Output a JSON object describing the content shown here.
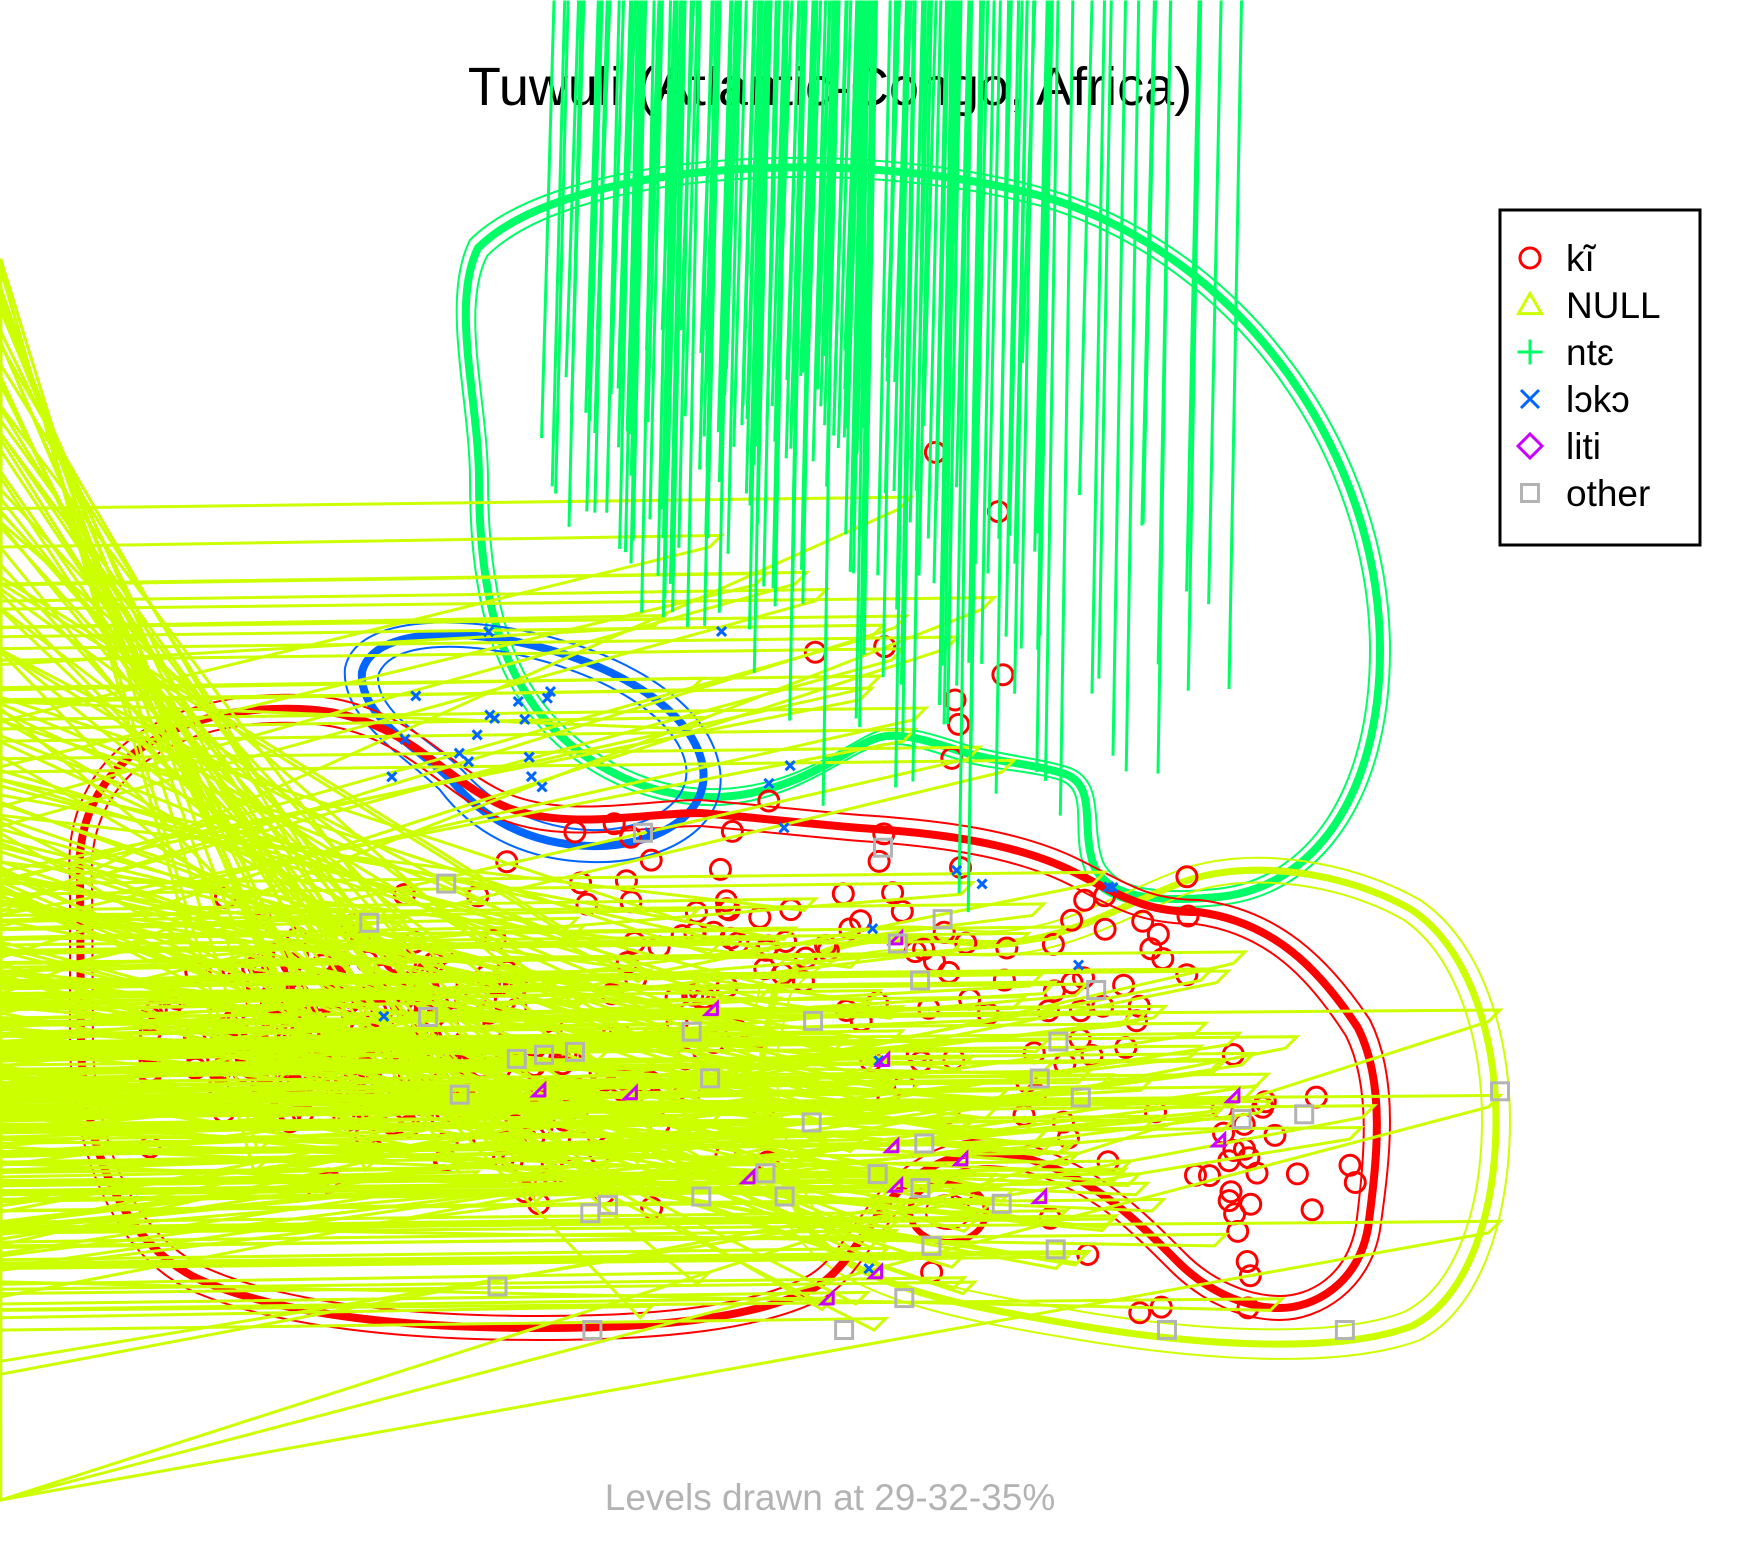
{
  "chart_data": {
    "type": "scatter",
    "title": "Tuwuli (Atlantic-Congo, Africa)",
    "caption": "Levels drawn at 29-32-35%",
    "legend_position": "top-right",
    "grid": false,
    "xlim": [
      0,
      100
    ],
    "ylim": [
      0,
      100
    ],
    "series": [
      {
        "name": "kĩ",
        "marker": "circle",
        "color": "#ff0000"
      },
      {
        "name": "NULL",
        "marker": "triangle",
        "color": "#ccff00"
      },
      {
        "name": "ntɛ",
        "marker": "plus",
        "color": "#00ff66"
      },
      {
        "name": "lɔkɔ",
        "marker": "cross",
        "color": "#0066ff"
      },
      {
        "name": "liti",
        "marker": "diamond",
        "color": "#cc00ff"
      },
      {
        "name": "other",
        "marker": "square",
        "color": "#b3b3b3"
      }
    ],
    "contour_levels": [
      "29%",
      "32%",
      "35%"
    ]
  }
}
